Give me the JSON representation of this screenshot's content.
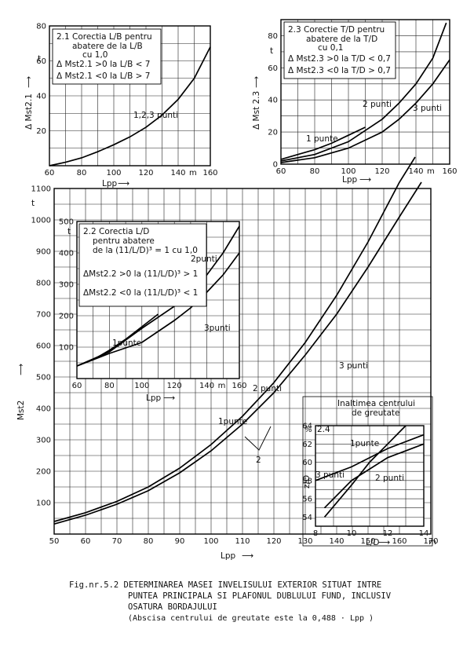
{
  "caption": {
    "line1": "Fig.nr.5.2   DETERMINAREA MASEI INVELISULUI EXTERIOR SITUAT INTRE",
    "line2": "PUNTEA PRINCIPALA SI PLAFONUL DUBLULUI FUND, INCLUSIV",
    "line3": "OSATURA BORDAJULUI",
    "line4": "(Abscisa centrului de greutate este la 0,488 · Lpp )"
  },
  "chart_data": [
    {
      "id": "2.1",
      "type": "line",
      "title": "2.1  Corectia L/B pentru abatere de la L/B cu 1,0",
      "notes": [
        "Δ Mst2.1 >0 la L/B < 7",
        "Δ Mst2.1 <0 la L/B > 7"
      ],
      "xlabel": "Lpp",
      "xunit": "m",
      "ylabel": "Δ Mst2.1",
      "yunit": "t",
      "xlim": [
        60,
        160
      ],
      "ylim": [
        0,
        80
      ],
      "xticks": [
        60,
        80,
        100,
        120,
        140,
        160
      ],
      "yticks": [
        20,
        40,
        60,
        80
      ],
      "grid": true,
      "series": [
        {
          "name": "1,2,3 punti",
          "x": [
            60,
            70,
            80,
            90,
            100,
            110,
            120,
            130,
            140,
            150,
            160
          ],
          "y": [
            0,
            2,
            4.5,
            8,
            12,
            16.5,
            22,
            29,
            38,
            50,
            68
          ]
        }
      ]
    },
    {
      "id": "2.3",
      "type": "line",
      "title": "2.3  Corectie T/D pentru abatere de la T/D cu 0,1",
      "notes": [
        "Δ Mst2.3 >0 la T/D < 0,7",
        "Δ Mst2.3 <0 la T/D > 0,7"
      ],
      "xlabel": "Lpp",
      "xunit": "m",
      "ylabel": "Δ Mst 2.3",
      "yunit": "t",
      "xlim": [
        60,
        160
      ],
      "ylim": [
        0,
        90
      ],
      "xticks": [
        60,
        80,
        100,
        120,
        140,
        160
      ],
      "yticks": [
        0,
        20,
        40,
        60,
        80
      ],
      "grid": true,
      "series": [
        {
          "name": "1 punte",
          "x": [
            60,
            70,
            80,
            90,
            100,
            110
          ],
          "y": [
            3,
            6,
            9,
            13,
            18,
            23
          ]
        },
        {
          "name": "2 punti",
          "x": [
            60,
            80,
            100,
            120,
            130,
            140,
            150,
            158
          ],
          "y": [
            2,
            6,
            14,
            28,
            38,
            50,
            66,
            88
          ]
        },
        {
          "name": "3 punti",
          "x": [
            60,
            80,
            100,
            120,
            130,
            140,
            150,
            160
          ],
          "y": [
            1,
            4,
            10,
            20,
            28,
            38,
            50,
            65
          ]
        }
      ]
    },
    {
      "id": "main",
      "type": "line",
      "xlabel": "Lpp",
      "xunit": "m",
      "ylabel": "Mst2",
      "yunit": "t",
      "xlim": [
        50,
        170
      ],
      "ylim": [
        0,
        1100
      ],
      "xticks": [
        50,
        60,
        70,
        80,
        90,
        100,
        110,
        120,
        130,
        140,
        150,
        160,
        170
      ],
      "yticks": [
        100,
        200,
        300,
        400,
        500,
        600,
        700,
        800,
        900,
        1000,
        1100
      ],
      "grid": true,
      "annotations": [
        "1punte",
        "2punti",
        "3 punti",
        "2"
      ],
      "series": [
        {
          "name": "1punte / 2punti",
          "x": [
            50,
            60,
            70,
            80,
            90,
            100,
            110,
            120,
            130,
            140,
            150,
            160,
            165
          ],
          "y": [
            40,
            68,
            104,
            150,
            210,
            285,
            375,
            482,
            610,
            760,
            930,
            1120,
            1200
          ]
        },
        {
          "name": "3 punti",
          "x": [
            50,
            60,
            70,
            80,
            90,
            100,
            110,
            120,
            130,
            140,
            150,
            160,
            167
          ],
          "y": [
            32,
            60,
            95,
            138,
            195,
            265,
            350,
            450,
            570,
            700,
            850,
            1010,
            1120
          ]
        }
      ]
    },
    {
      "id": "2.2",
      "type": "line",
      "title": "2.2  Corectia L/D pentru abatere de la (11/L/D)³ = 1 cu 1,0",
      "notes": [
        "ΔMst2.2 >0 la (11/L/D)³ > 1",
        "ΔMst2.2 <0 la (11/L/D)³ < 1"
      ],
      "xlabel": "Lpp",
      "xunit": "m",
      "yunit": "t",
      "xlim": [
        60,
        160
      ],
      "ylim": [
        0,
        500
      ],
      "xticks": [
        60,
        80,
        100,
        120,
        140,
        160
      ],
      "yticks": [
        100,
        200,
        300,
        400,
        500
      ],
      "grid": true,
      "series": [
        {
          "name": "1punte",
          "x": [
            60,
            70,
            80,
            90,
            100,
            110
          ],
          "y": [
            40,
            60,
            90,
            125,
            165,
            205
          ]
        },
        {
          "name": "2punti",
          "x": [
            60,
            80,
            100,
            120,
            130,
            140,
            150,
            160
          ],
          "y": [
            40,
            85,
            160,
            230,
            280,
            330,
            400,
            485
          ]
        },
        {
          "name": "3punti",
          "x": [
            60,
            80,
            100,
            110,
            120,
            130,
            140,
            150,
            160
          ],
          "y": [
            40,
            80,
            115,
            150,
            185,
            225,
            275,
            330,
            400
          ]
        }
      ]
    },
    {
      "id": "2.4",
      "type": "line",
      "title": "Inaltimea centrului de greutate",
      "panel": "2.4",
      "xlabel": "L/D",
      "ylabel": "z/D",
      "yunit": "%",
      "xlim": [
        8,
        14
      ],
      "ylim": [
        53,
        64
      ],
      "xticks": [
        8,
        10,
        12,
        14
      ],
      "yticks": [
        54,
        56,
        58,
        60,
        62,
        64
      ],
      "grid": true,
      "series": [
        {
          "name": "1punte",
          "x": [
            8,
            10,
            12,
            14
          ],
          "y": [
            58,
            59.5,
            61.5,
            63
          ]
        },
        {
          "name": "2punti",
          "x": [
            8.5,
            10,
            11,
            12,
            13
          ],
          "y": [
            54,
            57.5,
            60,
            62,
            64
          ]
        },
        {
          "name": "3punti",
          "x": [
            8.5,
            10,
            12,
            14
          ],
          "y": [
            55,
            58,
            60.5,
            62
          ]
        }
      ]
    }
  ],
  "labels": {
    "t": "t",
    "arrow": "⟶",
    "m": "m",
    "p21_curve": "1,2,3 punti",
    "p23_l1": "1 punte",
    "p23_l2": "2 punti",
    "p23_l3": "3 punti",
    "main_l1": "1punte",
    "main_l2": "2 punti",
    "main_l3": "3 punti",
    "main_2": "2",
    "p22_l1": "1punte",
    "p22_l2": "2punti",
    "p22_l3": "3punti",
    "p24_title1": "Inaltimea centrului",
    "p24_title2": "de greutate",
    "p24_id": "2.4",
    "p24_l1": "1punte",
    "p24_l2": "2 punti",
    "p24_l3": "3 punti"
  }
}
